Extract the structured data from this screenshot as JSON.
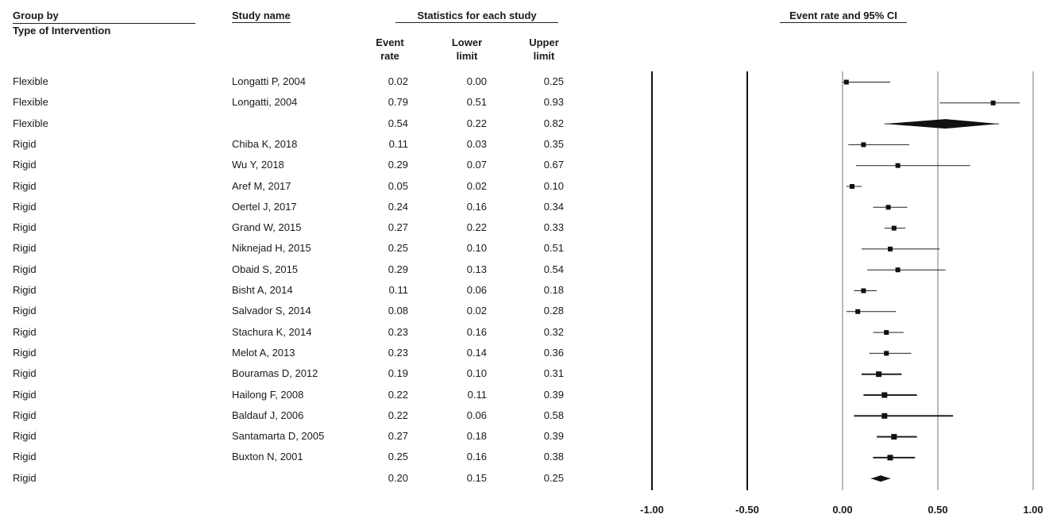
{
  "header": {
    "group_by": "Group by",
    "type_of_intervention": "Type of Intervention",
    "study_name": "Study name",
    "statistics": "Statistics for each study",
    "event_rate": "Event rate and 95% CI",
    "col_event": "Event rate",
    "col_lower": "Lower limit",
    "col_upper": "Upper limit"
  },
  "chart_data": {
    "type": "forest",
    "title": "Event rate and 95% CI",
    "xlim": [
      -1.0,
      1.0
    ],
    "x_ticks": [
      "-1.00",
      "-0.50",
      "0.00",
      "0.50",
      "1.00"
    ],
    "x_tick_values": [
      -1.0,
      -0.5,
      0.0,
      0.5,
      1.0
    ],
    "rows": [
      {
        "group": "Flexible",
        "study": "Longatti P, 2004",
        "event": "0.02",
        "lower": "0.00",
        "upper": "0.25",
        "marker": "square",
        "thick": false
      },
      {
        "group": "Flexible",
        "study": "Longatti, 2004",
        "event": "0.79",
        "lower": "0.51",
        "upper": "0.93",
        "marker": "square",
        "thick": false
      },
      {
        "group": "Flexible",
        "study": "",
        "event": "0.54",
        "lower": "0.22",
        "upper": "0.82",
        "marker": "diamond",
        "thick": false
      },
      {
        "group": "Rigid",
        "study": "Chiba K, 2018",
        "event": "0.11",
        "lower": "0.03",
        "upper": "0.35",
        "marker": "square",
        "thick": false
      },
      {
        "group": "Rigid",
        "study": "Wu Y, 2018",
        "event": "0.29",
        "lower": "0.07",
        "upper": "0.67",
        "marker": "square",
        "thick": false
      },
      {
        "group": "Rigid",
        "study": "Aref M, 2017",
        "event": "0.05",
        "lower": "0.02",
        "upper": "0.10",
        "marker": "square",
        "thick": false
      },
      {
        "group": "Rigid",
        "study": "Oertel J, 2017",
        "event": "0.24",
        "lower": "0.16",
        "upper": "0.34",
        "marker": "square",
        "thick": false
      },
      {
        "group": "Rigid",
        "study": "Grand W, 2015",
        "event": "0.27",
        "lower": "0.22",
        "upper": "0.33",
        "marker": "square",
        "thick": false
      },
      {
        "group": "Rigid",
        "study": "Niknejad H, 2015",
        "event": "0.25",
        "lower": "0.10",
        "upper": "0.51",
        "marker": "square",
        "thick": false
      },
      {
        "group": "Rigid",
        "study": "Obaid S, 2015",
        "event": "0.29",
        "lower": "0.13",
        "upper": "0.54",
        "marker": "square",
        "thick": false
      },
      {
        "group": "Rigid",
        "study": "Bisht A, 2014",
        "event": "0.11",
        "lower": "0.06",
        "upper": "0.18",
        "marker": "square",
        "thick": false
      },
      {
        "group": "Rigid",
        "study": "Salvador S, 2014",
        "event": "0.08",
        "lower": "0.02",
        "upper": "0.28",
        "marker": "square",
        "thick": false
      },
      {
        "group": "Rigid",
        "study": "Stachura K, 2014",
        "event": "0.23",
        "lower": "0.16",
        "upper": "0.32",
        "marker": "square",
        "thick": false
      },
      {
        "group": "Rigid",
        "study": "Melot A, 2013",
        "event": "0.23",
        "lower": "0.14",
        "upper": "0.36",
        "marker": "square",
        "thick": false
      },
      {
        "group": "Rigid",
        "study": "Bouramas D, 2012",
        "event": "0.19",
        "lower": "0.10",
        "upper": "0.31",
        "marker": "square",
        "thick": true
      },
      {
        "group": "Rigid",
        "study": "Hailong F, 2008",
        "event": "0.22",
        "lower": "0.11",
        "upper": "0.39",
        "marker": "square",
        "thick": true
      },
      {
        "group": "Rigid",
        "study": "Baldauf J, 2006",
        "event": "0.22",
        "lower": "0.06",
        "upper": "0.58",
        "marker": "square",
        "thick": true
      },
      {
        "group": "Rigid",
        "study": "Santamarta D, 2005",
        "event": "0.27",
        "lower": "0.18",
        "upper": "0.39",
        "marker": "square",
        "thick": true
      },
      {
        "group": "Rigid",
        "study": "Buxton N, 2001",
        "event": "0.25",
        "lower": "0.16",
        "upper": "0.38",
        "marker": "square",
        "thick": true
      },
      {
        "group": "Rigid",
        "study": "",
        "event": "0.20",
        "lower": "0.15",
        "upper": "0.25",
        "marker": "diamond",
        "thick": false
      }
    ]
  }
}
